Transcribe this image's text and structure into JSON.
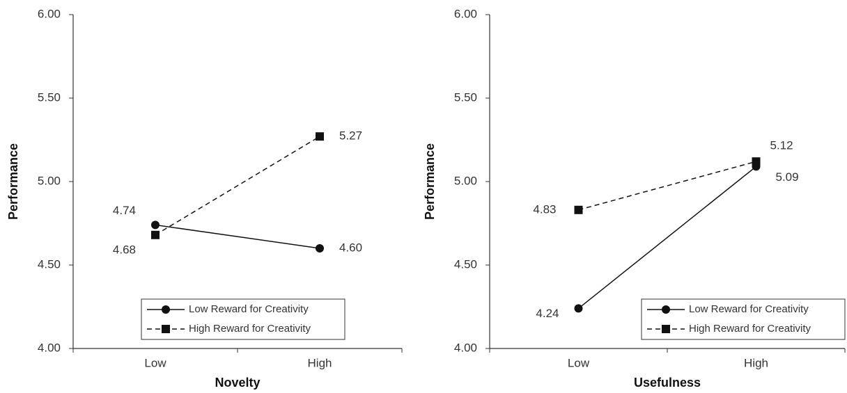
{
  "chart_data": [
    {
      "type": "line",
      "xlabel": "Novelty",
      "ylabel": "Performance",
      "categories": [
        "Low",
        "High"
      ],
      "series": [
        {
          "name": "Low Reward for Creativity",
          "color": "#111111",
          "marker": "circle",
          "linestyle": "solid",
          "values": [
            4.74,
            4.6
          ],
          "value_labels": [
            "4.74",
            "4.60"
          ]
        },
        {
          "name": "High Reward for Creativity",
          "color": "#111111",
          "marker": "square",
          "linestyle": "dashed",
          "values": [
            4.68,
            5.27
          ],
          "value_labels": [
            "4.68",
            "5.27"
          ]
        }
      ],
      "ylim": [
        4,
        6
      ],
      "yticks": [
        {
          "value": 4,
          "label": "4.00"
        },
        {
          "value": 4.5,
          "label": "4.50"
        },
        {
          "value": 5,
          "label": "5.00"
        },
        {
          "value": 5.5,
          "label": "5.50"
        },
        {
          "value": 6,
          "label": "6.00"
        }
      ],
      "legend": "lower right"
    },
    {
      "type": "line",
      "xlabel": "Usefulness",
      "ylabel": "Performance",
      "categories": [
        "Low",
        "High"
      ],
      "series": [
        {
          "name": "Low Reward for Creativity",
          "color": "#111111",
          "marker": "circle",
          "linestyle": "solid",
          "values": [
            4.24,
            5.09
          ],
          "value_labels": [
            "4.24",
            "5.09"
          ]
        },
        {
          "name": "High Reward for Creativity",
          "color": "#111111",
          "marker": "square",
          "linestyle": "dashed",
          "values": [
            4.83,
            5.12
          ],
          "value_labels": [
            "4.83",
            "5.12"
          ]
        }
      ],
      "ylim": [
        4,
        6
      ],
      "yticks": [
        {
          "value": 4,
          "label": "4.00"
        },
        {
          "value": 4.5,
          "label": "4.50"
        },
        {
          "value": 5,
          "label": "5.00"
        },
        {
          "value": 5.5,
          "label": "5.50"
        },
        {
          "value": 6,
          "label": "6.00"
        }
      ],
      "legend": "lower right"
    }
  ]
}
